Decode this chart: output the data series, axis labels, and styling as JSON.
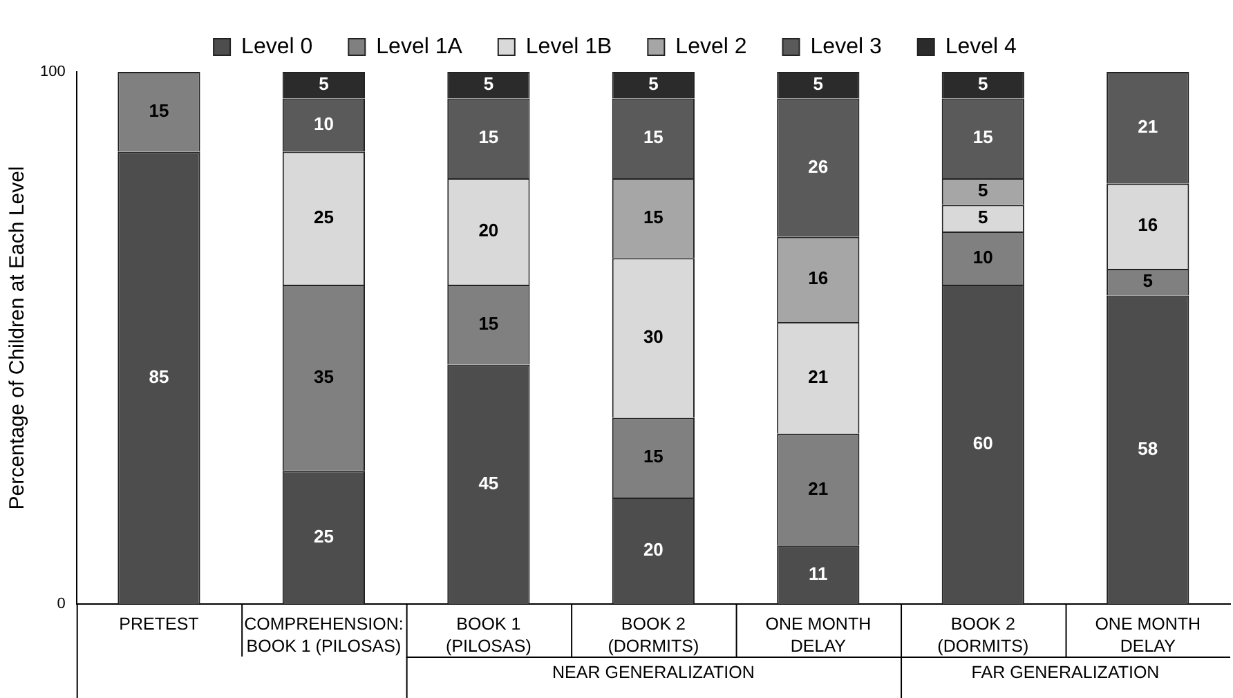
{
  "chart_data": {
    "type": "bar",
    "stacked": true,
    "ylabel": "Percentage of Children at Each Level",
    "categories": [
      "PRETEST",
      "COMPREHENSION:\nBOOK 1 (PILOSAS)",
      "BOOK 1\n(PILOSAS)",
      "BOOK 2\n(DORMITS)",
      "ONE MONTH\nDELAY",
      "BOOK 2\n(DORMITS)",
      "ONE MONTH\nDELAY"
    ],
    "series": [
      {
        "name": "Level 0",
        "color": "#4d4d4d",
        "values": [
          85,
          25,
          45,
          20,
          11,
          60,
          58
        ]
      },
      {
        "name": "Level 1A",
        "color": "#808080",
        "values": [
          15,
          35,
          15,
          15,
          21,
          10,
          5
        ]
      },
      {
        "name": "Level 1B",
        "color": "#d9d9d9",
        "values": [
          null,
          25,
          20,
          30,
          21,
          5,
          16
        ]
      },
      {
        "name": "Level 2",
        "color": "#a6a6a6",
        "values": [
          null,
          null,
          null,
          15,
          16,
          5,
          null
        ]
      },
      {
        "name": "Level 3",
        "color": "#5a5a5a",
        "values": [
          null,
          10,
          15,
          15,
          26,
          15,
          21
        ]
      },
      {
        "name": "Level 4",
        "color": "#2b2b2b",
        "values": [
          null,
          5,
          5,
          5,
          5,
          5,
          null
        ]
      }
    ],
    "ylim": [
      0,
      100
    ],
    "yticks": [
      0,
      100
    ],
    "grid": false,
    "legend": "top",
    "data_labels": true,
    "annotations": [
      "NEAR GENERALIZATION",
      "FAR GENERALIZATION"
    ]
  }
}
